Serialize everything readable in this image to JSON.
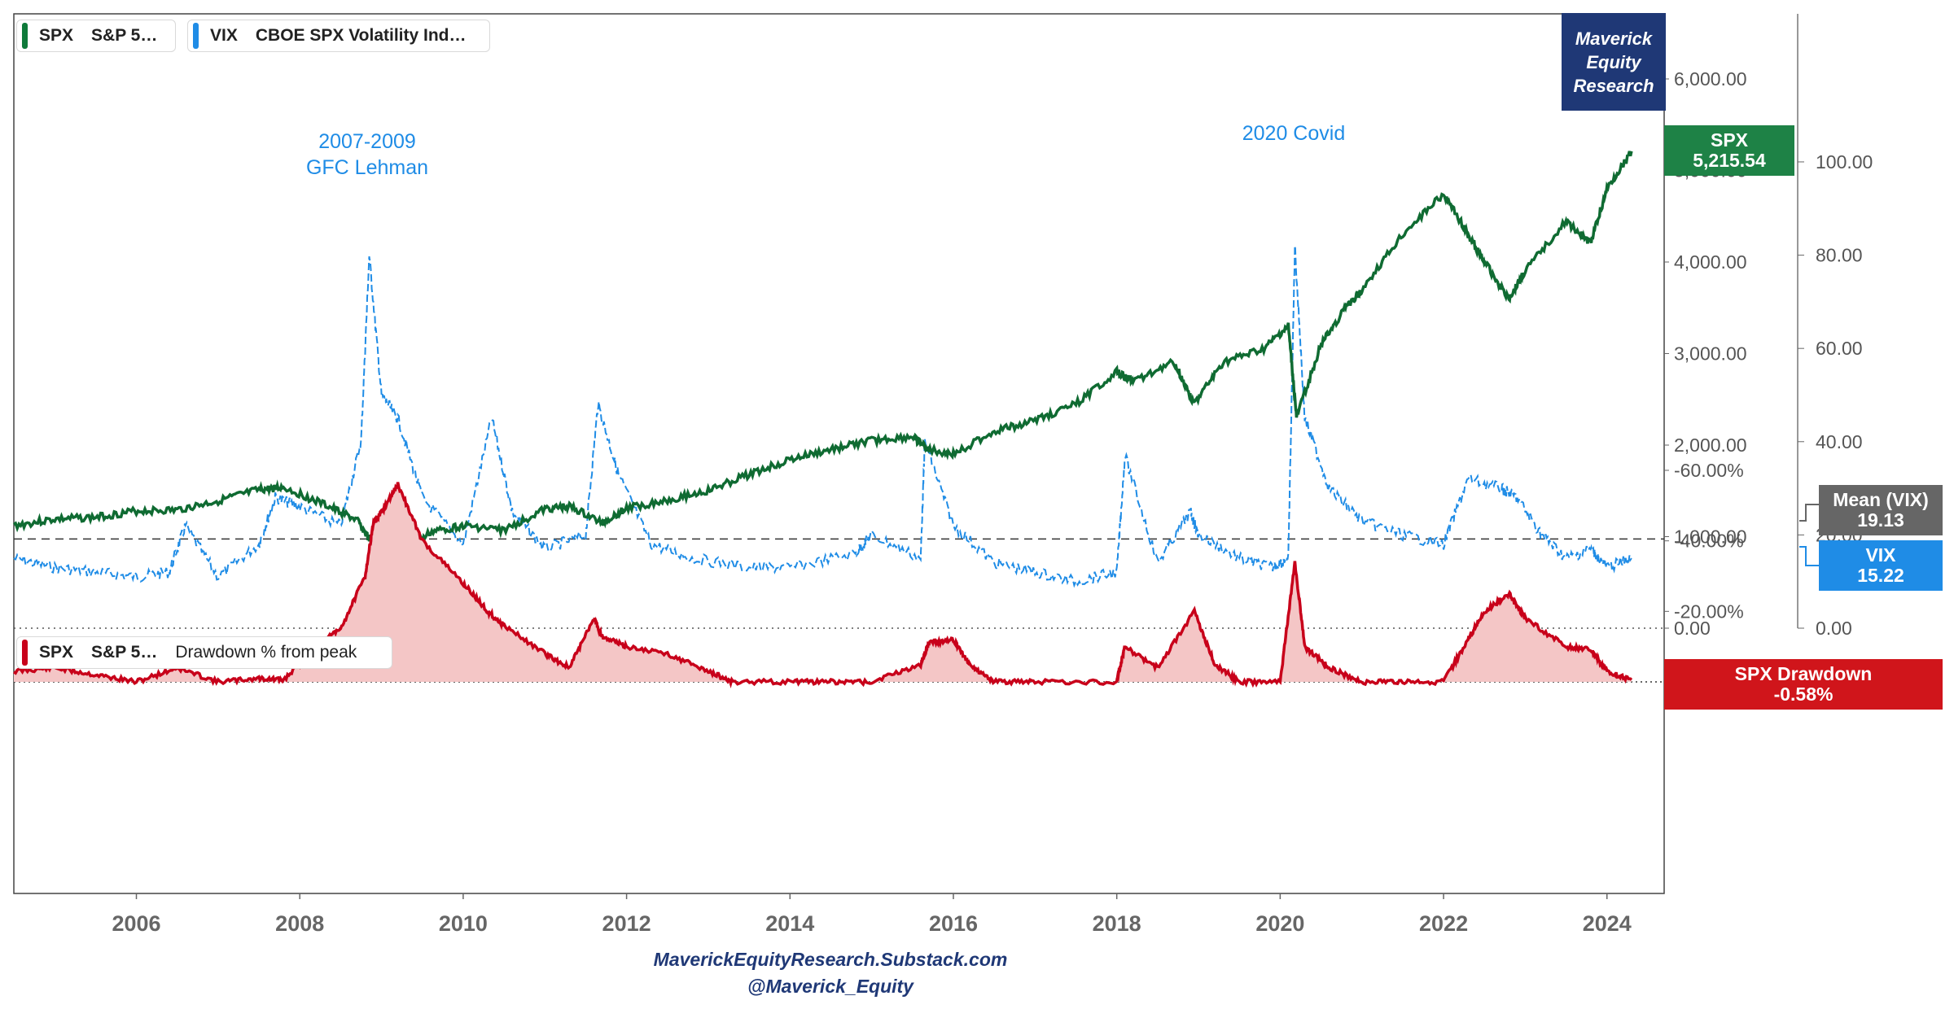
{
  "legend": {
    "spx": {
      "ticker": "SPX",
      "name": "S&P 5…",
      "color": "#0f7a3a"
    },
    "vix": {
      "ticker": "VIX",
      "name": "CBOE SPX Volatility Ind…",
      "color": "#1f8ce6"
    },
    "drawdown": {
      "ticker": "SPX",
      "name": "S&P 5…",
      "extra": "Drawdown % from peak",
      "color": "#c8001a"
    }
  },
  "brand": {
    "line1": "Maverick",
    "line2": "Equity",
    "line3": "Research"
  },
  "annotations": {
    "gfc_line1": "2007-2009",
    "gfc_line2": "GFC Lehman",
    "covid": "2020 Covid"
  },
  "tags": {
    "spx_label": "SPX",
    "spx_value": "5,215.54",
    "spx_color": "#1e8246",
    "mean_label": "Mean (VIX)",
    "mean_value": "19.13",
    "mean_color": "#666666",
    "vix_label": "VIX",
    "vix_value": "15.22",
    "vix_color": "#1f8ce6",
    "dd_label": "SPX Drawdown",
    "dd_value": "-0.58%",
    "dd_color": "#d0151b"
  },
  "footer": {
    "line1": "MaverickEquityResearch.Substack.com",
    "line2": "@Maverick_Equity"
  },
  "chart_data": [
    {
      "type": "line",
      "series": [
        {
          "name": "S&P 5…",
          "ticker": "SPX",
          "axis": "left",
          "x": [
            2004.5,
            2005.0,
            2005.5,
            2006.0,
            2006.5,
            2007.0,
            2007.5,
            2007.8,
            2008.3,
            2008.7,
            2008.9,
            2009.2,
            2009.6,
            2010.0,
            2010.5,
            2011.0,
            2011.3,
            2011.7,
            2012.0,
            2012.5,
            2013.0,
            2013.5,
            2014.0,
            2014.5,
            2015.0,
            2015.5,
            2015.7,
            2016.0,
            2016.5,
            2017.0,
            2017.5,
            2018.0,
            2018.2,
            2018.7,
            2018.95,
            2019.3,
            2019.8,
            2020.1,
            2020.2,
            2020.5,
            2020.8,
            2021.0,
            2021.5,
            2022.0,
            2022.3,
            2022.5,
            2022.8,
            2023.0,
            2023.5,
            2023.8,
            2024.0,
            2024.3
          ],
          "y": [
            1120,
            1190,
            1210,
            1280,
            1290,
            1390,
            1510,
            1540,
            1350,
            1180,
            900,
            730,
            1050,
            1120,
            1070,
            1300,
            1330,
            1150,
            1310,
            1400,
            1500,
            1680,
            1840,
            1950,
            2050,
            2090,
            1950,
            1900,
            2150,
            2270,
            2450,
            2800,
            2700,
            2910,
            2450,
            2900,
            3050,
            3300,
            2300,
            3100,
            3500,
            3700,
            4300,
            4750,
            4300,
            4000,
            3600,
            3900,
            4450,
            4200,
            4800,
            5210
          ],
          "ylim": [
            0,
            6000
          ],
          "ticks": [
            "0.00",
            "1,000.00",
            "2,000.00",
            "3,000.00",
            "4,000.00",
            "5,000.00",
            "6,000.00"
          ]
        },
        {
          "name": "CBOE SPX Volatility Ind…",
          "ticker": "VIX",
          "axis": "right",
          "x": [
            2004.5,
            2005.0,
            2005.5,
            2006.0,
            2006.4,
            2006.6,
            2007.0,
            2007.5,
            2007.7,
            2008.0,
            2008.5,
            2008.75,
            2008.85,
            2009.0,
            2009.2,
            2009.5,
            2010.0,
            2010.35,
            2010.6,
            2011.0,
            2011.5,
            2011.65,
            2011.9,
            2012.3,
            2012.8,
            2013.5,
            2014.0,
            2014.8,
            2015.0,
            2015.6,
            2015.65,
            2016.0,
            2016.5,
            2017.0,
            2017.5,
            2018.0,
            2018.1,
            2018.5,
            2018.9,
            2019.0,
            2019.5,
            2019.9,
            2020.1,
            2020.18,
            2020.3,
            2020.6,
            2021.0,
            2021.5,
            2022.0,
            2022.3,
            2022.7,
            2022.9,
            2023.2,
            2023.5,
            2023.8,
            2024.0,
            2024.3
          ],
          "y": [
            15,
            13,
            12,
            11,
            12,
            22,
            11,
            18,
            28,
            26,
            22,
            40,
            80,
            50,
            45,
            28,
            18,
            45,
            25,
            17,
            20,
            48,
            33,
            18,
            15,
            13,
            13,
            16,
            20,
            15,
            40,
            22,
            14,
            12,
            10,
            12,
            37,
            14,
            25,
            20,
            15,
            13,
            15,
            82,
            45,
            30,
            23,
            20,
            18,
            32,
            30,
            28,
            20,
            15,
            17,
            13,
            15
          ],
          "ylim": [
            0,
            115
          ],
          "ticks": [
            "0.00",
            "20.00",
            "40.00",
            "60.00",
            "80.00",
            "100.00"
          ],
          "mean": 19.13
        }
      ],
      "xlabel": "",
      "ylabel": "",
      "x_ticks": [
        "2006",
        "2008",
        "2010",
        "2012",
        "2014",
        "2016",
        "2018",
        "2020",
        "2022",
        "2024"
      ]
    },
    {
      "type": "area",
      "series": [
        {
          "name": "Drawdown % from peak",
          "ticker": "SPX",
          "x": [
            2004.5,
            2005.0,
            2005.5,
            2006.0,
            2006.5,
            2007.0,
            2007.5,
            2007.8,
            2008.2,
            2008.5,
            2008.8,
            2008.9,
            2009.0,
            2009.2,
            2009.5,
            2010.0,
            2010.3,
            2010.5,
            2011.0,
            2011.3,
            2011.6,
            2011.7,
            2012.0,
            2012.5,
            2013.0,
            2013.3,
            2014.0,
            2014.5,
            2015.0,
            2015.6,
            2015.7,
            2016.0,
            2016.2,
            2016.5,
            2017.0,
            2018.0,
            2018.1,
            2018.5,
            2018.95,
            2019.2,
            2019.5,
            2020.0,
            2020.18,
            2020.3,
            2020.6,
            2021.0,
            2021.5,
            2022.0,
            2022.3,
            2022.5,
            2022.8,
            2023.0,
            2023.5,
            2023.8,
            2024.0,
            2024.3
          ],
          "y": [
            -3,
            -4,
            -2,
            0,
            -4,
            0,
            -1,
            -0.5,
            -10,
            -15,
            -30,
            -45,
            -48,
            -56,
            -40,
            -28,
            -20,
            -16,
            -8,
            -4,
            -18,
            -13,
            -10,
            -8,
            -3,
            0,
            0,
            0,
            0,
            -5,
            -11,
            -12,
            -5,
            0,
            0,
            0,
            -10,
            -4,
            -20,
            -5,
            0,
            0,
            -34,
            -10,
            -4,
            0,
            0,
            0,
            -12,
            -20,
            -25,
            -18,
            -10,
            -9,
            -3,
            -0.58
          ],
          "ylim": [
            -60,
            5
          ],
          "ticks": [
            "-60.00%",
            "-40.00%",
            "-20.00%",
            "0.00%"
          ]
        }
      ]
    }
  ]
}
